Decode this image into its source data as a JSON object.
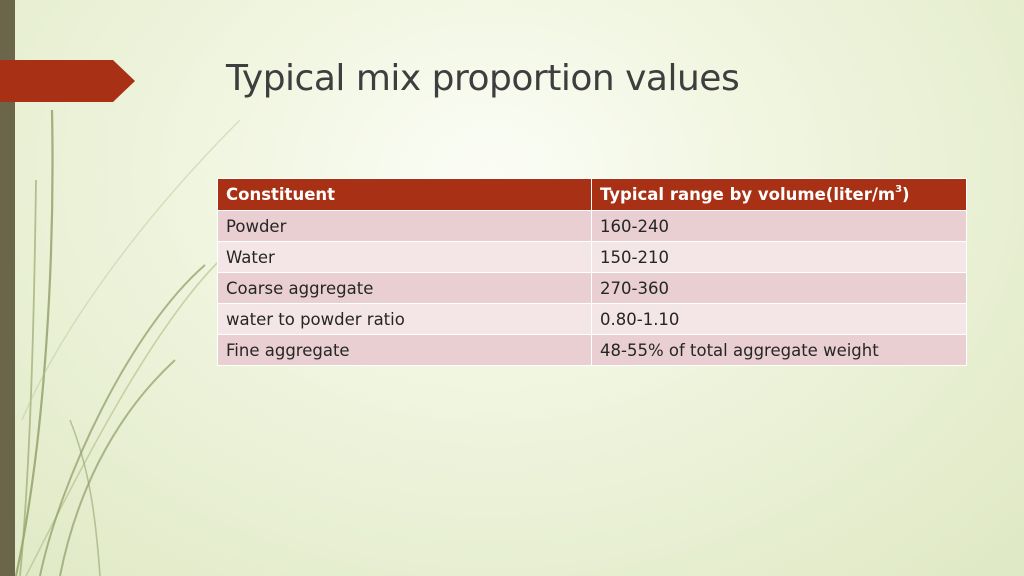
{
  "slide": {
    "title": "Typical mix proportion values"
  },
  "table": {
    "headers": {
      "constituent": "Constituent",
      "range": "Typical range by volume(liter/m",
      "range_sup": "3",
      "range_close": ")"
    },
    "rows": [
      {
        "constituent": "Powder",
        "range": "160-240"
      },
      {
        "constituent": "Water",
        "range": "150-210"
      },
      {
        "constituent": "Coarse aggregate",
        "range": "270-360"
      },
      {
        "constituent": "water to powder ratio",
        "range": "0.80-1.10"
      },
      {
        "constituent": "Fine aggregate",
        "range": "48-55% of total aggregate weight"
      }
    ]
  },
  "colors": {
    "accent": "#a83014",
    "left_bar": "#6b6549",
    "row_odd": "#e9cfd1",
    "row_even": "#f4e6e6",
    "title_text": "#3e3e3e"
  }
}
